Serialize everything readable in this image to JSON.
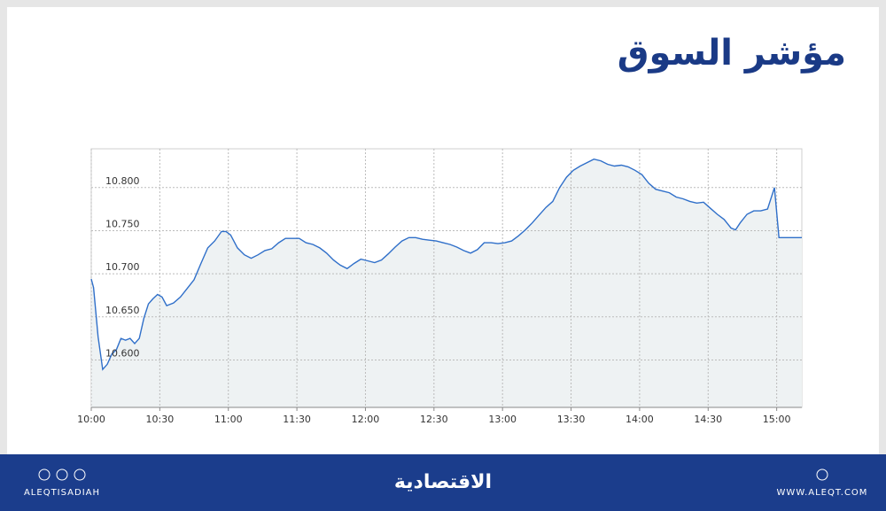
{
  "chart_data": {
    "type": "line",
    "title": "مؤشر السوق",
    "x": [
      "10:00",
      "10:01",
      "10:03",
      "10:05",
      "10:07",
      "10:09",
      "10:11",
      "10:13",
      "10:15",
      "10:17",
      "10:19",
      "10:21",
      "10:23",
      "10:25",
      "10:27",
      "10:29",
      "10:31",
      "10:33",
      "10:36",
      "10:39",
      "10:42",
      "10:45",
      "10:48",
      "10:51",
      "10:54",
      "10:57",
      "10:59",
      "11:01",
      "11:04",
      "11:07",
      "11:10",
      "11:13",
      "11:16",
      "11:19",
      "11:22",
      "11:25",
      "11:28",
      "11:31",
      "11:34",
      "11:37",
      "11:40",
      "11:43",
      "11:46",
      "11:49",
      "11:52",
      "11:55",
      "11:58",
      "12:01",
      "12:04",
      "12:07",
      "12:10",
      "12:13",
      "12:16",
      "12:19",
      "12:22",
      "12:25",
      "12:28",
      "12:31",
      "12:34",
      "12:37",
      "12:40",
      "12:43",
      "12:46",
      "12:49",
      "12:52",
      "12:55",
      "12:58",
      "13:01",
      "13:04",
      "13:07",
      "13:10",
      "13:13",
      "13:16",
      "13:19",
      "13:22",
      "13:25",
      "13:28",
      "13:31",
      "13:34",
      "13:37",
      "13:40",
      "13:43",
      "13:46",
      "13:49",
      "13:52",
      "13:55",
      "13:58",
      "14:01",
      "14:04",
      "14:07",
      "14:10",
      "14:13",
      "14:16",
      "14:19",
      "14:22",
      "14:25",
      "14:28",
      "14:31",
      "14:34",
      "14:37",
      "14:40",
      "14:42",
      "14:44",
      "14:47",
      "14:50",
      "14:53",
      "14:56",
      "14:59",
      "15:01",
      "15:11"
    ],
    "series": [
      {
        "name": "مؤشر السوق",
        "color": "#2f6fc9",
        "values": [
          10.694,
          10.684,
          10.627,
          10.589,
          10.595,
          10.607,
          10.612,
          10.625,
          10.623,
          10.625,
          10.619,
          10.625,
          10.648,
          10.665,
          10.671,
          10.676,
          10.673,
          10.663,
          10.666,
          10.673,
          10.683,
          10.693,
          10.712,
          10.73,
          10.738,
          10.749,
          10.749,
          10.745,
          10.73,
          10.722,
          10.718,
          10.722,
          10.727,
          10.729,
          10.736,
          10.741,
          10.741,
          10.741,
          10.736,
          10.734,
          10.73,
          10.724,
          10.716,
          10.71,
          10.706,
          10.712,
          10.717,
          10.715,
          10.713,
          10.716,
          10.723,
          10.731,
          10.738,
          10.742,
          10.742,
          10.74,
          10.739,
          10.738,
          10.736,
          10.734,
          10.731,
          10.727,
          10.724,
          10.728,
          10.736,
          10.736,
          10.735,
          10.736,
          10.738,
          10.744,
          10.751,
          10.759,
          10.768,
          10.777,
          10.784,
          10.8,
          10.812,
          10.82,
          10.825,
          10.829,
          10.833,
          10.831,
          10.827,
          10.825,
          10.826,
          10.824,
          10.82,
          10.815,
          10.805,
          10.798,
          10.796,
          10.794,
          10.789,
          10.787,
          10.784,
          10.782,
          10.783,
          10.776,
          10.769,
          10.763,
          10.753,
          10.751,
          10.759,
          10.769,
          10.773,
          10.773,
          10.775,
          10.8,
          10.742,
          10.742
        ]
      }
    ],
    "xlim": [
      "10:00",
      "15:11"
    ],
    "xticks": [
      "10:00",
      "10:30",
      "11:00",
      "11:30",
      "12:00",
      "12:30",
      "13:00",
      "13:30",
      "14:00",
      "14:30",
      "15:00"
    ],
    "ylim": [
      10.545,
      10.845
    ],
    "yticks": [
      {
        "value": 10.6,
        "label": "10.600"
      },
      {
        "value": 10.65,
        "label": "10.650"
      },
      {
        "value": 10.7,
        "label": "10.700"
      },
      {
        "value": 10.75,
        "label": "10.750"
      },
      {
        "value": 10.8,
        "label": "10.800"
      }
    ],
    "grid": true,
    "fill": "#eef2f3"
  },
  "footer": {
    "brand": "الاقتصادية",
    "handle": "ALEQTISADIAH",
    "site": "WWW.ALEQT.COM"
  }
}
